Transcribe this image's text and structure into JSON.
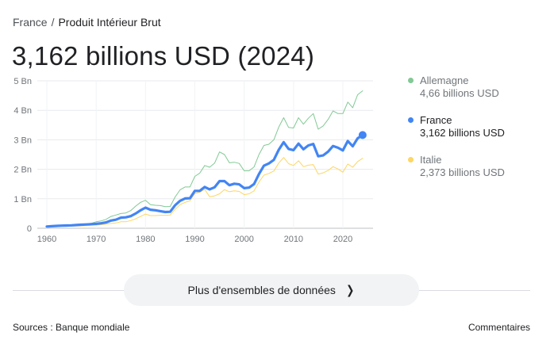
{
  "breadcrumb": {
    "country": "France",
    "separator": "/",
    "indicator": "Produit Intérieur Brut"
  },
  "headline": "3,162 billions USD (2024)",
  "legend": [
    {
      "name": "Allemagne",
      "value": "4,66 billions USD",
      "color": "#81c995",
      "state": "dim"
    },
    {
      "name": "France",
      "value": "3,162 billions USD",
      "color": "#4285f4",
      "state": "active"
    },
    {
      "name": "Italie",
      "value": "2,373 billions USD",
      "color": "#fdd663",
      "state": "dim"
    }
  ],
  "more_button": {
    "label": "Plus d'ensembles de données",
    "icon": "chevron-right-icon"
  },
  "footer": {
    "sources": "Sources : Banque mondiale",
    "feedback": "Commentaires"
  },
  "chart_data": {
    "type": "line",
    "x_ticks": [
      "1960",
      "1970",
      "1980",
      "1990",
      "2000",
      "2010",
      "2020"
    ],
    "y_ticks": [
      "0",
      "1 Bn",
      "2 Bn",
      "3 Bn",
      "4 Bn",
      "5 Bn"
    ],
    "xlim": [
      1960,
      2025
    ],
    "ylim": [
      0,
      5
    ],
    "grid": true,
    "legend_position": "right",
    "x": [
      1960,
      1961,
      1962,
      1963,
      1964,
      1965,
      1966,
      1967,
      1968,
      1969,
      1970,
      1971,
      1972,
      1973,
      1974,
      1975,
      1976,
      1977,
      1978,
      1979,
      1980,
      1981,
      1982,
      1983,
      1984,
      1985,
      1986,
      1987,
      1988,
      1989,
      1990,
      1991,
      1992,
      1993,
      1994,
      1995,
      1996,
      1997,
      1998,
      1999,
      2000,
      2001,
      2002,
      2003,
      2004,
      2005,
      2006,
      2007,
      2008,
      2009,
      2010,
      2011,
      2012,
      2013,
      2014,
      2015,
      2016,
      2017,
      2018,
      2019,
      2020,
      2021,
      2022,
      2023,
      2024
    ],
    "series": [
      {
        "name": "Allemagne",
        "color": "#81c995",
        "width": 1,
        "values": [
          0.07,
          0.08,
          0.09,
          0.1,
          0.11,
          0.12,
          0.13,
          0.14,
          0.15,
          0.17,
          0.22,
          0.25,
          0.3,
          0.4,
          0.45,
          0.5,
          0.52,
          0.6,
          0.75,
          0.88,
          0.95,
          0.8,
          0.78,
          0.77,
          0.73,
          0.74,
          1.06,
          1.3,
          1.4,
          1.4,
          1.76,
          1.87,
          2.13,
          2.07,
          2.21,
          2.59,
          2.5,
          2.22,
          2.24,
          2.2,
          1.95,
          1.95,
          2.08,
          2.5,
          2.81,
          2.85,
          3.0,
          3.43,
          3.75,
          3.42,
          3.4,
          3.75,
          3.53,
          3.73,
          3.89,
          3.36,
          3.47,
          3.69,
          3.98,
          3.89,
          3.89,
          4.28,
          4.09,
          4.53,
          4.66
        ]
      },
      {
        "name": "France",
        "color": "#4285f4",
        "width": 3.2,
        "values": [
          0.06,
          0.07,
          0.08,
          0.09,
          0.095,
          0.1,
          0.11,
          0.12,
          0.13,
          0.14,
          0.15,
          0.17,
          0.2,
          0.26,
          0.29,
          0.36,
          0.37,
          0.41,
          0.5,
          0.61,
          0.7,
          0.63,
          0.61,
          0.58,
          0.55,
          0.56,
          0.78,
          0.93,
          1.01,
          1.02,
          1.27,
          1.27,
          1.4,
          1.32,
          1.39,
          1.6,
          1.6,
          1.46,
          1.51,
          1.49,
          1.36,
          1.38,
          1.5,
          1.84,
          2.12,
          2.2,
          2.32,
          2.66,
          2.92,
          2.69,
          2.65,
          2.87,
          2.68,
          2.81,
          2.86,
          2.44,
          2.47,
          2.6,
          2.79,
          2.73,
          2.64,
          2.96,
          2.78,
          3.05,
          3.162
        ]
      },
      {
        "name": "Italie",
        "color": "#fdd663",
        "width": 1,
        "values": [
          0.04,
          0.045,
          0.05,
          0.06,
          0.065,
          0.07,
          0.075,
          0.08,
          0.09,
          0.1,
          0.11,
          0.12,
          0.14,
          0.16,
          0.18,
          0.22,
          0.22,
          0.26,
          0.32,
          0.4,
          0.48,
          0.43,
          0.43,
          0.44,
          0.44,
          0.45,
          0.64,
          0.8,
          0.88,
          0.93,
          1.18,
          1.22,
          1.32,
          1.07,
          1.1,
          1.17,
          1.31,
          1.24,
          1.27,
          1.25,
          1.14,
          1.17,
          1.27,
          1.57,
          1.8,
          1.86,
          1.94,
          2.21,
          2.4,
          2.19,
          2.13,
          2.29,
          2.09,
          2.14,
          2.16,
          1.84,
          1.88,
          1.96,
          2.09,
          2.01,
          1.9,
          2.18,
          2.07,
          2.26,
          2.373
        ]
      }
    ],
    "highlight": {
      "series": "France",
      "x": 2024,
      "y": 3.162
    }
  }
}
